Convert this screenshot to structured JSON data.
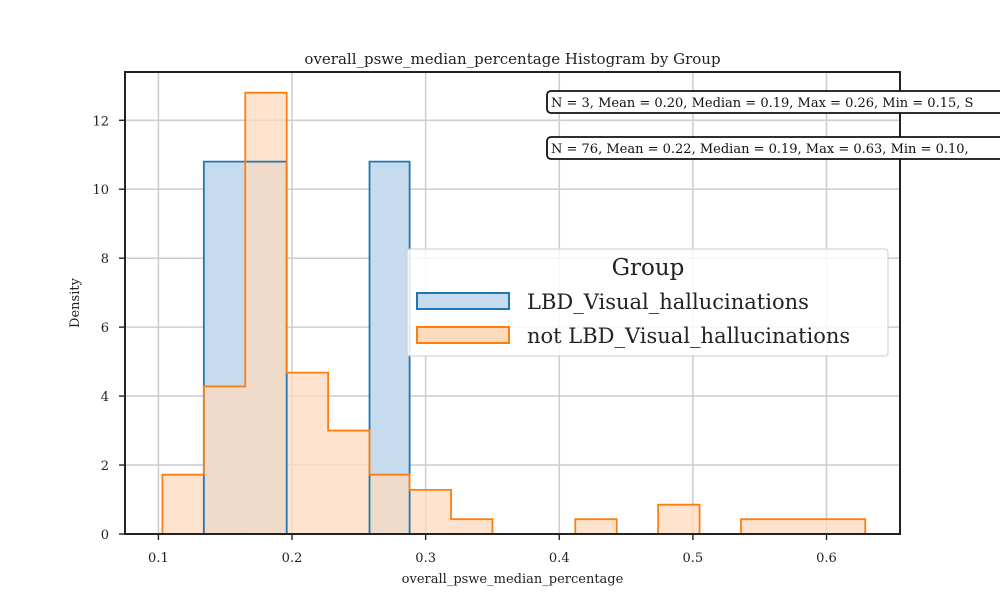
{
  "chart_data": {
    "type": "histogram",
    "title": "overall_pswe_median_percentage Histogram by Group",
    "xlabel": "overall_pswe_median_percentage",
    "ylabel": "Density",
    "xlim": [
      0.075,
      0.655
    ],
    "ylim": [
      0,
      13.4
    ],
    "x_ticks": [
      "0.1",
      "0.2",
      "0.3",
      "0.4",
      "0.5",
      "0.6"
    ],
    "y_ticks": [
      "0",
      "2",
      "4",
      "6",
      "8",
      "10",
      "12"
    ],
    "grid": true,
    "legend": {
      "title": "Group",
      "placement": "center-right"
    },
    "series": [
      {
        "name": "LBD_Visual_hallucinations",
        "color": "#1f77b4",
        "fill": "#c6dbed",
        "bins": [
          {
            "x0": 0.134,
            "x1": 0.196,
            "density": 10.8
          },
          {
            "x0": 0.258,
            "x1": 0.288,
            "density": 10.8
          }
        ]
      },
      {
        "name": "not LBD_Visual_hallucinations",
        "color": "#ff7f0e",
        "fill": "#fedbbd",
        "bins": [
          {
            "x0": 0.103,
            "x1": 0.134,
            "density": 1.72
          },
          {
            "x0": 0.134,
            "x1": 0.165,
            "density": 4.28
          },
          {
            "x0": 0.165,
            "x1": 0.196,
            "density": 12.8
          },
          {
            "x0": 0.196,
            "x1": 0.227,
            "density": 4.68
          },
          {
            "x0": 0.227,
            "x1": 0.258,
            "density": 3.0
          },
          {
            "x0": 0.258,
            "x1": 0.288,
            "density": 1.72
          },
          {
            "x0": 0.288,
            "x1": 0.319,
            "density": 1.28
          },
          {
            "x0": 0.319,
            "x1": 0.35,
            "density": 0.43
          },
          {
            "x0": 0.35,
            "x1": 0.412,
            "density": 0
          },
          {
            "x0": 0.412,
            "x1": 0.443,
            "density": 0.43
          },
          {
            "x0": 0.443,
            "x1": 0.474,
            "density": 0
          },
          {
            "x0": 0.474,
            "x1": 0.505,
            "density": 0.85
          },
          {
            "x0": 0.505,
            "x1": 0.536,
            "density": 0
          },
          {
            "x0": 0.536,
            "x1": 0.629,
            "density": 0.43
          }
        ]
      }
    ],
    "annotations": [
      "N = 3, Mean = 0.20, Median = 0.19, Max = 0.26, Min = 0.15, S",
      "N = 76, Mean = 0.22, Median = 0.19, Max = 0.63, Min = 0.10,"
    ]
  }
}
